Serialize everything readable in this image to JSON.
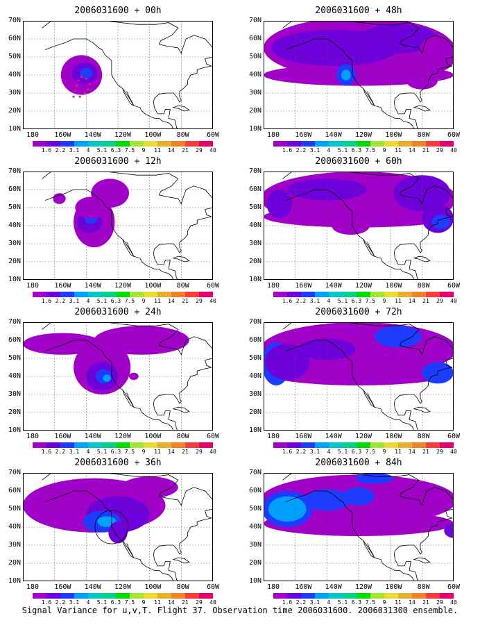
{
  "figure": {
    "caption": "Signal Variance for u,v,T. Flight 37. Observation time 2006031600. 2006031300 ensemble.",
    "x_ticks": [
      "180",
      "160W",
      "140W",
      "120W",
      "100W",
      "80W",
      "60W"
    ],
    "y_ticks": [
      "70N",
      "60N",
      "50N",
      "40N",
      "30N",
      "20N",
      "10N"
    ],
    "colorbar_labels": [
      "1.6",
      "2.2",
      "3.1",
      "4",
      "5.1",
      "6.3",
      "7.5",
      "9",
      "11",
      "14",
      "21",
      "29",
      "40"
    ],
    "colorbar_colors": [
      "#a000c8",
      "#6e00dc",
      "#1e3cff",
      "#00a0ff",
      "#00c8c8",
      "#00d28c",
      "#00dc00",
      "#a0e632",
      "#e6dc32",
      "#e6af2d",
      "#f08228",
      "#fa3c3c",
      "#e6006e"
    ],
    "lat_range": [
      10,
      70
    ],
    "lon_range": [
      "180",
      "60W"
    ]
  },
  "panels": [
    {
      "title": "2006031600 + 00h"
    },
    {
      "title": "2006031600 + 48h"
    },
    {
      "title": "2006031600 + 12h"
    },
    {
      "title": "2006031600 + 60h"
    },
    {
      "title": "2006031600 + 24h"
    },
    {
      "title": "2006031600 + 72h"
    },
    {
      "title": "2006031600 + 36h"
    },
    {
      "title": "2006031600 + 84h"
    }
  ]
}
